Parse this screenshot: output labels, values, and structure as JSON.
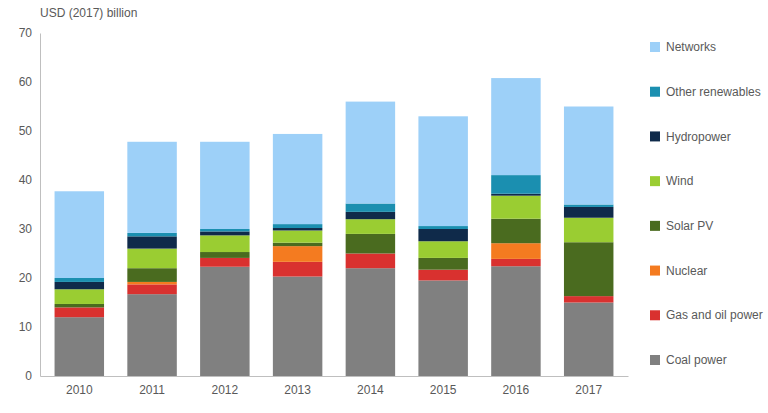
{
  "chart_data": {
    "type": "bar",
    "stacked": true,
    "grid": false,
    "legend": "right",
    "y_label": "USD (2017) billion",
    "categories": [
      "2010",
      "2011",
      "2012",
      "2013",
      "2014",
      "2015",
      "2016",
      "2017"
    ],
    "ylim": [
      0,
      70
    ],
    "yticks": [
      0,
      10,
      20,
      30,
      40,
      50,
      60,
      70
    ],
    "series": [
      {
        "name": "Coal power",
        "color": "#808080",
        "values": [
          12,
          16.7,
          22.3,
          20.3,
          22,
          19.5,
          22.4,
          15
        ]
      },
      {
        "name": "Gas and oil power",
        "color": "#d9312f",
        "values": [
          2,
          2,
          1.8,
          3,
          3,
          2.2,
          1.5,
          1.3
        ]
      },
      {
        "name": "Nuclear",
        "color": "#f47b20",
        "values": [
          0,
          0.5,
          0,
          3.2,
          0,
          0,
          3.2,
          0
        ]
      },
      {
        "name": "Solar PV",
        "color": "#4a6b1f",
        "values": [
          0.7,
          2.8,
          1.2,
          0.7,
          4,
          2.4,
          5,
          11
        ]
      },
      {
        "name": "Wind",
        "color": "#9acd32",
        "values": [
          3,
          4,
          3.4,
          2.5,
          3,
          3.4,
          4.7,
          5
        ]
      },
      {
        "name": "Hydropower",
        "color": "#0f2a4a",
        "values": [
          1.5,
          2.5,
          0.8,
          0.5,
          1.5,
          2.5,
          0.4,
          2.2
        ]
      },
      {
        "name": "Other renewables",
        "color": "#1b8fb0",
        "values": [
          0.8,
          0.7,
          0.5,
          0.8,
          1.7,
          0.6,
          3.8,
          0.5
        ]
      },
      {
        "name": "Networks",
        "color": "#9dd0f8",
        "values": [
          17.7,
          18.6,
          17.8,
          18.4,
          20.8,
          22.4,
          19.8,
          20
        ]
      }
    ]
  }
}
